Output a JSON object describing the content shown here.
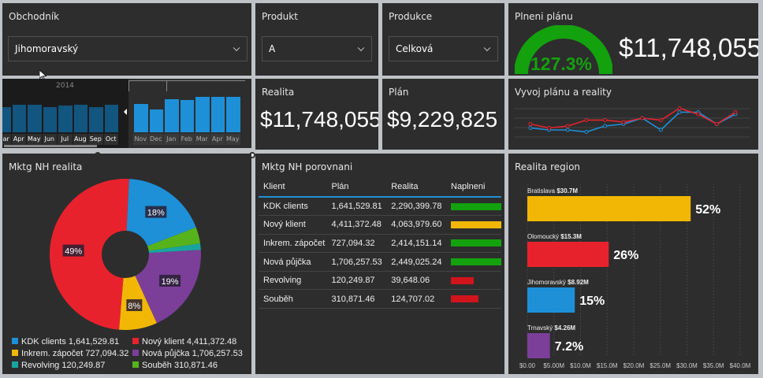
{
  "colors": {
    "blue": "#1e90d8",
    "red": "#e8222d",
    "yellow": "#f2b705",
    "purple": "#7b3f99",
    "teal": "#18a5a0",
    "green": "#57b31c",
    "gauge_green": "#13a10e"
  },
  "obchodnik": {
    "title": "Obchodník",
    "value": "Jihomoravský"
  },
  "produkt": {
    "title": "Produkt",
    "value": "A"
  },
  "produkce": {
    "title": "Produkce",
    "value": "Celková"
  },
  "plneni": {
    "title": "Plneni plánu",
    "gauge_value": "127.3%",
    "gauge_fraction": 1.0,
    "amount": "$11,748,055"
  },
  "realita": {
    "title": "Realita",
    "value": "$11,748,055"
  },
  "plan": {
    "title": "Plán",
    "value": "$9,229,825"
  },
  "timeline": {
    "year": "2014",
    "months_left": [
      "Mar",
      "Apr",
      "May",
      "Jun",
      "Jul",
      "Aug",
      "Sep",
      "Oct"
    ],
    "months_right": [
      "Nov",
      "Dec",
      "Jan",
      "Feb",
      "Mar",
      "Apr",
      "May"
    ],
    "bars_left": [
      0.55,
      0.6,
      0.6,
      0.55,
      0.58,
      0.6,
      0.55,
      0.6
    ],
    "bars_right": [
      0.62,
      0.5,
      0.72,
      0.7,
      0.78,
      0.77,
      0.78
    ]
  },
  "vyvoj": {
    "title": "Vyvoj plánu a reality",
    "chart_data": {
      "type": "line",
      "series": [
        {
          "values": [
            0.35,
            0.3,
            0.3,
            0.25,
            0.4,
            0.45,
            0.6,
            0.3,
            0.75,
            0.75,
            0.45,
            0.7
          ]
        },
        {
          "values": [
            0.45,
            0.35,
            0.4,
            0.55,
            0.55,
            0.5,
            0.6,
            0.55,
            0.85,
            0.7,
            0.45,
            0.75
          ]
        }
      ]
    }
  },
  "mktg_realita": {
    "title": "Mktg NH realita",
    "chart_data": {
      "type": "pie",
      "slices": [
        {
          "label": "KDK clients",
          "value": 1641529.81,
          "pct": "18%"
        },
        {
          "label": "Nový klient",
          "value": 4411372.48,
          "pct": "49%"
        },
        {
          "label": "Inkrem. zápočet",
          "value": 727094.32,
          "pct": "8%"
        },
        {
          "label": "Nová půjčka",
          "value": 1706257.53,
          "pct": "19%"
        },
        {
          "label": "Revolving",
          "value": 120249.87,
          "pct": "1%"
        },
        {
          "label": "Souběh",
          "value": 310871.46,
          "pct": "3%"
        }
      ]
    },
    "legend": [
      "KDK clients 1,641,529.81",
      "Nový klient 4,411,372.48",
      "Inkrem. zápočet 727,094.32",
      "Nová půjčka 1,706,257.53",
      "Revolving 120,249.87",
      "Souběh 310,871.46"
    ]
  },
  "mktg_porovnani": {
    "title": "Mktg NH porovnani",
    "headers": [
      "Klient",
      "Plán",
      "Realita",
      "Naplneni"
    ],
    "rows": [
      {
        "klient": "KDK clients",
        "plan": "1,641,529.81",
        "realita": "2,290,399.78",
        "fill": 1.0,
        "status": "green"
      },
      {
        "klient": "Nový klient",
        "plan": "4,411,372.48",
        "realita": "4,063,979.60",
        "fill": 1.0,
        "status": "yellow"
      },
      {
        "klient": "Inkrem. zápočet",
        "plan": "727,094.32",
        "realita": "2,414,151.14",
        "fill": 1.0,
        "status": "green"
      },
      {
        "klient": "Nová půjčka",
        "plan": "1,706,257.53",
        "realita": "2,449,025.24",
        "fill": 1.0,
        "status": "green"
      },
      {
        "klient": "Revolving",
        "plan": "120,249.87",
        "realita": "39,648.06",
        "fill": 0.45,
        "status": "red"
      },
      {
        "klient": "Souběh",
        "plan": "310,871.46",
        "realita": "124,707.02",
        "fill": 0.55,
        "status": "red"
      }
    ]
  },
  "realita_region": {
    "title": "Realita region",
    "chart_data": {
      "type": "bar",
      "categories": [
        "Bratislava",
        "Olomoucký",
        "Jihomoravský",
        "Trnavský"
      ],
      "values": [
        30.7,
        15.3,
        8.92,
        4.26
      ],
      "value_labels": [
        "$30.7M",
        "$15.3M",
        "$8.92M",
        "$4.26M"
      ],
      "pct_labels": [
        "52%",
        "26%",
        "15%",
        "7.2%"
      ],
      "colors": [
        "#f2b705",
        "#e8222d",
        "#1e90d8",
        "#7b3f99"
      ],
      "xlim": [
        0,
        40
      ],
      "xticks": [
        "$0.00",
        "$5.00M",
        "$10.0M",
        "$15.0M",
        "$20.0M",
        "$25.0M",
        "$30.0M",
        "$35.0M",
        "$40.0M"
      ]
    }
  }
}
